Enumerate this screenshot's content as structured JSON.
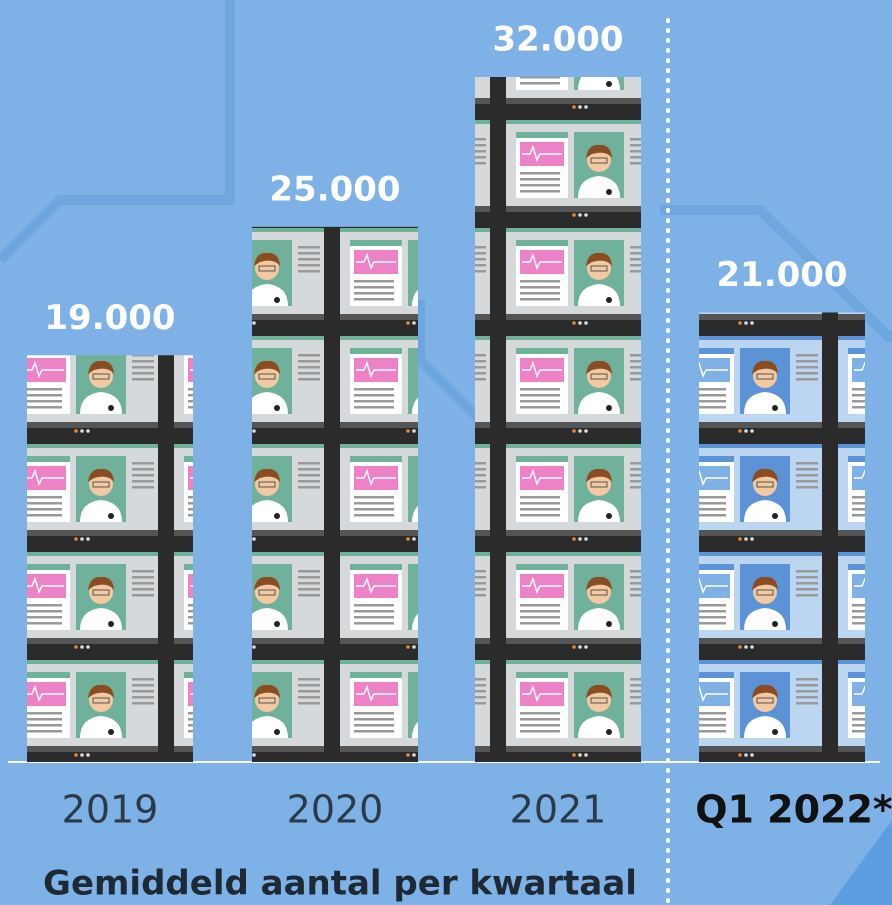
{
  "chart_data": {
    "type": "pictogram-bar",
    "categories": [
      "2019",
      "2020",
      "2021",
      "Q1 2022*"
    ],
    "values": [
      19000,
      25000,
      32000,
      21000
    ],
    "value_labels": [
      "19.000",
      "25.000",
      "32.000",
      "21.000"
    ],
    "colors": [
      "#6fb19a",
      "#6fb19a",
      "#6fb19a",
      "#5b93d6"
    ],
    "subtitle": "Gemiddeld aantal per kwartaal"
  }
}
